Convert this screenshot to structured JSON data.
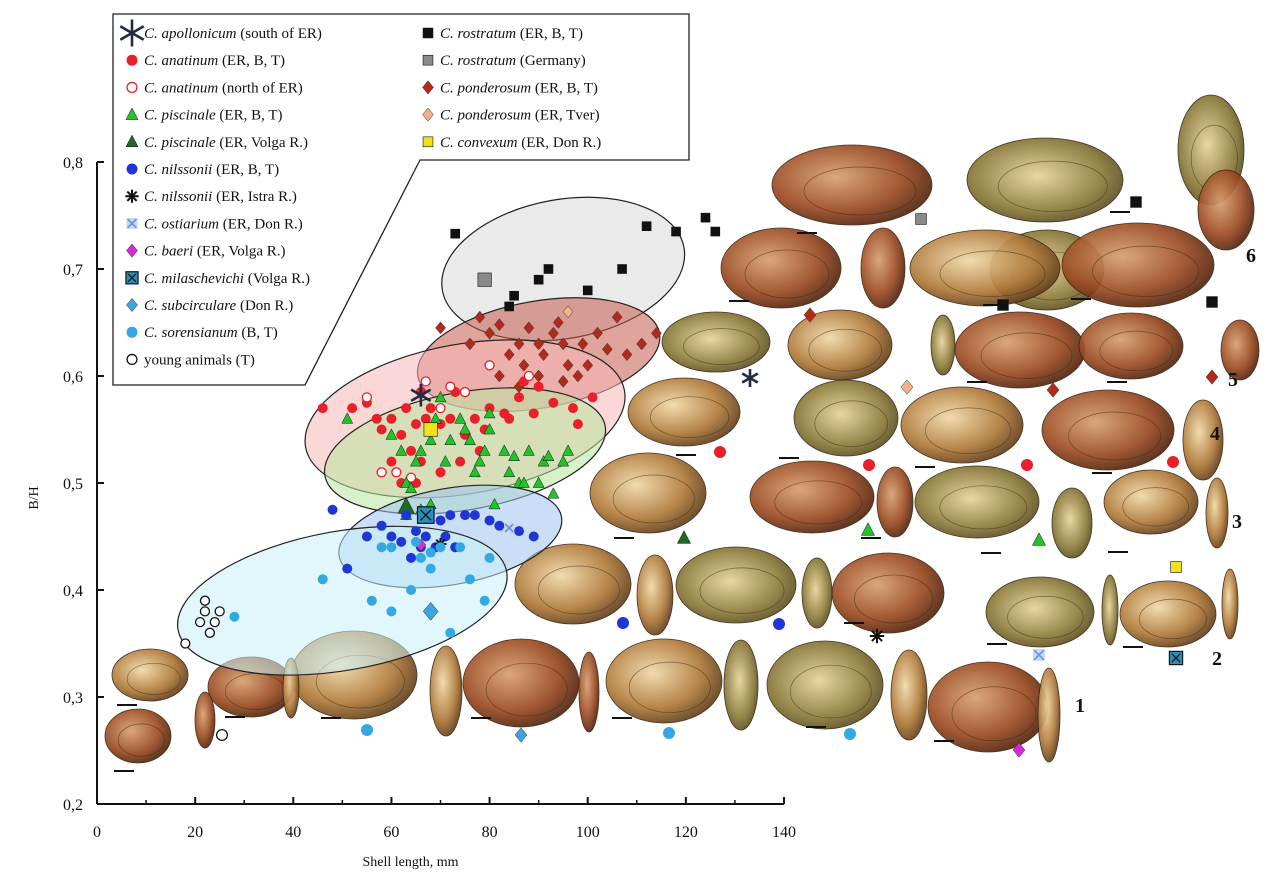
{
  "chart_data": {
    "type": "scatter",
    "xlabel": "Shell length, mm",
    "ylabel": "B/H",
    "xlim": [
      0,
      140
    ],
    "ylim": [
      0.2,
      0.8
    ],
    "x_ticks": [
      "0",
      "20",
      "40",
      "60",
      "80",
      "100",
      "120",
      "140"
    ],
    "y_ticks": [
      "0,2",
      "0,3",
      "0,4",
      "0,5",
      "0,6",
      "0,7",
      "0,8"
    ],
    "grid": false,
    "legend_position": "top-left",
    "legend": [
      {
        "species": "C. apollonicum",
        "note": "(south of ER)",
        "marker": "star",
        "color": "#1f2a44"
      },
      {
        "species": "C. anatinum",
        "note": "(ER, B, T)",
        "marker": "circle",
        "color": "#e8202a"
      },
      {
        "species": "C. anatinum",
        "note": "(north of ER)",
        "marker": "circle-open",
        "color": "#e8202a"
      },
      {
        "species": "C. piscinale",
        "note": "(ER, B, T)",
        "marker": "triangle",
        "color": "#22c32a"
      },
      {
        "species": "C. piscinale",
        "note": "(ER, Volga R.)",
        "marker": "triangle",
        "color": "#1e6b22"
      },
      {
        "species": "C. nilssonii",
        "note": "(ER, B, T)",
        "marker": "circle",
        "color": "#1f35d6"
      },
      {
        "species": "C. nilssonii",
        "note": "(ER, Istra R.)",
        "marker": "asterisk",
        "color": "#111111"
      },
      {
        "species": "C. ostiarium",
        "note": "(ER, Don R.)",
        "marker": "x-square",
        "color": "#6a8fe0"
      },
      {
        "species": "C. baeri",
        "note": "(ER, Volga R.)",
        "marker": "diamond",
        "color": "#d62ad6"
      },
      {
        "species": "C. milaschevichi",
        "note": "(Volga R.)",
        "marker": "boxed-x",
        "color": "#2a8fb8"
      },
      {
        "species": "C. subcirculare",
        "note": "(Don R.)",
        "marker": "diamond",
        "color": "#3fa3dc"
      },
      {
        "species": "C. sorensianum",
        "note": "(B, T)",
        "marker": "circle",
        "color": "#34a8e0"
      },
      {
        "species": "",
        "note": "young animals (T)",
        "marker": "circle-open",
        "color": "#111111"
      },
      {
        "species": "C. rostratum",
        "note": "(ER, B, T)",
        "marker": "square",
        "color": "#111111"
      },
      {
        "species": "C. rostratum",
        "note": "(Germany)",
        "marker": "square",
        "color": "#8a8a8a"
      },
      {
        "species": "C. ponderosum",
        "note": "(ER, B, T)",
        "marker": "diamond",
        "color": "#b32a1a"
      },
      {
        "species": "C. ponderosum",
        "note": "(ER, Tver)",
        "marker": "diamond",
        "color": "#f2b089"
      },
      {
        "species": "C. convexum",
        "note": "(ER, Don R.)",
        "marker": "square",
        "color": "#f2e21a"
      }
    ],
    "ellipses": [
      {
        "group": "rostratum",
        "cx": 95,
        "cy": 0.7,
        "rx": 25,
        "ry": 0.065,
        "color": "#d9d9d9"
      },
      {
        "group": "ponderosum",
        "cx": 90,
        "cy": 0.62,
        "rx": 25,
        "ry": 0.05,
        "color": "#c45a4a"
      },
      {
        "group": "anatinum",
        "cx": 75,
        "cy": 0.56,
        "rx": 33,
        "ry": 0.07,
        "color": "#f6b8b8"
      },
      {
        "group": "piscinale",
        "cx": 75,
        "cy": 0.53,
        "rx": 29,
        "ry": 0.055,
        "color": "#b9e6a0"
      },
      {
        "group": "nilssonii",
        "cx": 72,
        "cy": 0.45,
        "rx": 23,
        "ry": 0.045,
        "color": "#9ec3f2"
      },
      {
        "group": "sorensianum",
        "cx": 50,
        "cy": 0.39,
        "rx": 34,
        "ry": 0.065,
        "color": "#c9f0f8"
      }
    ],
    "series": [
      {
        "name": "C. rostratum (ER, B, T)",
        "marker": "square",
        "color": "#111111",
        "points": [
          [
            73,
            0.733
          ],
          [
            84,
            0.665
          ],
          [
            85,
            0.675
          ],
          [
            90,
            0.69
          ],
          [
            92,
            0.7
          ],
          [
            100,
            0.68
          ],
          [
            107,
            0.7
          ],
          [
            112,
            0.74
          ],
          [
            118,
            0.735
          ],
          [
            124,
            0.748
          ],
          [
            126,
            0.735
          ]
        ]
      },
      {
        "name": "C. rostratum (Germany)",
        "marker": "square",
        "color": "#8a8a8a",
        "points": [
          [
            79,
            0.69
          ]
        ]
      },
      {
        "name": "C. ponderosum (ER, B, T)",
        "marker": "diamond",
        "color": "#b32a1a",
        "points": [
          [
            70,
            0.645
          ],
          [
            76,
            0.63
          ],
          [
            78,
            0.655
          ],
          [
            80,
            0.64
          ],
          [
            82,
            0.648
          ],
          [
            84,
            0.62
          ],
          [
            86,
            0.63
          ],
          [
            87,
            0.61
          ],
          [
            88,
            0.645
          ],
          [
            90,
            0.63
          ],
          [
            91,
            0.62
          ],
          [
            93,
            0.64
          ],
          [
            94,
            0.65
          ],
          [
            95,
            0.63
          ],
          [
            96,
            0.61
          ],
          [
            99,
            0.63
          ],
          [
            100,
            0.61
          ],
          [
            102,
            0.64
          ],
          [
            104,
            0.625
          ],
          [
            106,
            0.655
          ],
          [
            108,
            0.62
          ],
          [
            111,
            0.63
          ],
          [
            114,
            0.64
          ],
          [
            82,
            0.6
          ],
          [
            86,
            0.59
          ],
          [
            90,
            0.6
          ],
          [
            95,
            0.595
          ],
          [
            98,
            0.6
          ]
        ]
      },
      {
        "name": "C. ponderosum (ER, Tver)",
        "marker": "diamond",
        "color": "#f2b089",
        "points": [
          [
            96,
            0.66
          ]
        ]
      },
      {
        "name": "C. anatinum (ER, B, T)",
        "marker": "circle",
        "color": "#e8202a",
        "points": [
          [
            46,
            0.57
          ],
          [
            52,
            0.57
          ],
          [
            55,
            0.575
          ],
          [
            58,
            0.55
          ],
          [
            60,
            0.56
          ],
          [
            62,
            0.545
          ],
          [
            63,
            0.57
          ],
          [
            64,
            0.53
          ],
          [
            65,
            0.555
          ],
          [
            66,
            0.585
          ],
          [
            67,
            0.56
          ],
          [
            68,
            0.57
          ],
          [
            70,
            0.555
          ],
          [
            72,
            0.56
          ],
          [
            73,
            0.585
          ],
          [
            75,
            0.545
          ],
          [
            77,
            0.56
          ],
          [
            79,
            0.55
          ],
          [
            80,
            0.57
          ],
          [
            83,
            0.565
          ],
          [
            86,
            0.58
          ],
          [
            89,
            0.565
          ],
          [
            93,
            0.575
          ],
          [
            97,
            0.57
          ],
          [
            101,
            0.58
          ],
          [
            98,
            0.555
          ],
          [
            78,
            0.53
          ],
          [
            74,
            0.52
          ],
          [
            70,
            0.51
          ],
          [
            66,
            0.52
          ],
          [
            60,
            0.52
          ],
          [
            62,
            0.5
          ],
          [
            65,
            0.5
          ],
          [
            57,
            0.56
          ],
          [
            84,
            0.56
          ],
          [
            87,
            0.595
          ],
          [
            90,
            0.59
          ]
        ]
      },
      {
        "name": "C. anatinum (north of ER)",
        "marker": "circle-open",
        "color": "#e8202a",
        "points": [
          [
            55,
            0.58
          ],
          [
            58,
            0.51
          ],
          [
            61,
            0.51
          ],
          [
            64,
            0.505
          ],
          [
            67,
            0.595
          ],
          [
            70,
            0.57
          ],
          [
            72,
            0.59
          ],
          [
            75,
            0.585
          ],
          [
            80,
            0.61
          ],
          [
            88,
            0.6
          ]
        ]
      },
      {
        "name": "C. piscinale (ER, B, T)",
        "marker": "triangle",
        "color": "#22c32a",
        "points": [
          [
            51,
            0.56
          ],
          [
            60,
            0.545
          ],
          [
            62,
            0.53
          ],
          [
            63,
            0.5
          ],
          [
            64,
            0.495
          ],
          [
            65,
            0.52
          ],
          [
            66,
            0.53
          ],
          [
            68,
            0.54
          ],
          [
            69,
            0.56
          ],
          [
            70,
            0.58
          ],
          [
            71,
            0.52
          ],
          [
            72,
            0.54
          ],
          [
            74,
            0.56
          ],
          [
            75,
            0.55
          ],
          [
            76,
            0.54
          ],
          [
            77,
            0.51
          ],
          [
            78,
            0.52
          ],
          [
            79,
            0.53
          ],
          [
            80,
            0.55
          ],
          [
            80,
            0.565
          ],
          [
            81,
            0.48
          ],
          [
            83,
            0.53
          ],
          [
            84,
            0.51
          ],
          [
            85,
            0.525
          ],
          [
            88,
            0.53
          ],
          [
            90,
            0.5
          ],
          [
            91,
            0.52
          ],
          [
            92,
            0.525
          ],
          [
            93,
            0.49
          ],
          [
            95,
            0.52
          ],
          [
            96,
            0.53
          ],
          [
            68,
            0.48
          ],
          [
            66,
            0.475
          ],
          [
            63,
            0.47
          ],
          [
            86,
            0.5
          ],
          [
            87,
            0.5
          ]
        ]
      },
      {
        "name": "C. piscinale (ER, Volga R.)",
        "marker": "triangle",
        "color": "#1e6b22",
        "points": [
          [
            63,
            0.478
          ]
        ]
      },
      {
        "name": "C. nilssonii (ER, B, T)",
        "marker": "circle",
        "color": "#1f35d6",
        "points": [
          [
            48,
            0.475
          ],
          [
            51,
            0.42
          ],
          [
            55,
            0.45
          ],
          [
            58,
            0.46
          ],
          [
            60,
            0.45
          ],
          [
            62,
            0.445
          ],
          [
            63,
            0.47
          ],
          [
            65,
            0.455
          ],
          [
            66,
            0.44
          ],
          [
            67,
            0.45
          ],
          [
            68,
            0.47
          ],
          [
            70,
            0.465
          ],
          [
            72,
            0.47
          ],
          [
            73,
            0.44
          ],
          [
            75,
            0.47
          ],
          [
            77,
            0.47
          ],
          [
            80,
            0.465
          ],
          [
            82,
            0.46
          ],
          [
            86,
            0.455
          ],
          [
            89,
            0.45
          ],
          [
            64,
            0.43
          ],
          [
            69,
            0.44
          ],
          [
            71,
            0.45
          ]
        ]
      },
      {
        "name": "C. nilssonii (ER, Istra R.)",
        "marker": "asterisk",
        "color": "#111111",
        "points": [
          [
            70,
            0.443
          ]
        ]
      },
      {
        "name": "C. ostiarium (ER, Don R.)",
        "marker": "x-square",
        "color": "#6a8fe0",
        "points": [
          [
            68,
            0.468
          ],
          [
            84,
            0.458
          ]
        ]
      },
      {
        "name": "C. baeri (ER, Volga R.)",
        "marker": "diamond",
        "color": "#d62ad6",
        "points": [
          [
            66,
            0.442
          ]
        ]
      },
      {
        "name": "C. milaschevichi (Volga R.)",
        "marker": "boxed-x",
        "color": "#2a8fb8",
        "points": [
          [
            67,
            0.47
          ]
        ]
      },
      {
        "name": "C. subcirculare (Don R.)",
        "marker": "diamond",
        "color": "#3fa3dc",
        "points": [
          [
            68,
            0.38
          ]
        ]
      },
      {
        "name": "C. sorensianum (B, T)",
        "marker": "circle",
        "color": "#34a8e0",
        "points": [
          [
            28,
            0.375
          ],
          [
            46,
            0.41
          ],
          [
            56,
            0.39
          ],
          [
            58,
            0.44
          ],
          [
            60,
            0.38
          ],
          [
            64,
            0.4
          ],
          [
            66,
            0.43
          ],
          [
            68,
            0.42
          ],
          [
            68,
            0.435
          ],
          [
            70,
            0.44
          ],
          [
            72,
            0.36
          ],
          [
            74,
            0.44
          ],
          [
            76,
            0.41
          ],
          [
            79,
            0.39
          ],
          [
            80,
            0.43
          ],
          [
            60,
            0.44
          ],
          [
            65,
            0.445
          ]
        ]
      },
      {
        "name": "young animals (T)",
        "marker": "circle-open",
        "color": "#111111",
        "points": [
          [
            18,
            0.35
          ],
          [
            21,
            0.37
          ],
          [
            22,
            0.38
          ],
          [
            22,
            0.39
          ],
          [
            23,
            0.36
          ],
          [
            24,
            0.37
          ],
          [
            25,
            0.38
          ]
        ]
      },
      {
        "name": "C. apollonicum (south of ER)",
        "marker": "star",
        "color": "#1f2a44",
        "points": [
          [
            66,
            0.582
          ]
        ]
      },
      {
        "name": "C. convexum (ER, Don R.)",
        "marker": "square",
        "color": "#f2e21a",
        "points": [
          [
            68,
            0.55
          ]
        ]
      }
    ]
  },
  "photo_panel": {
    "group_labels": [
      "6",
      "5",
      "4",
      "3",
      "2",
      "1"
    ],
    "shell_colors": [
      "#8b5a2b",
      "#b07a3a",
      "#c9a063",
      "#6b4a2a",
      "#d9b77a",
      "#5a6b3a",
      "#a0522d"
    ]
  }
}
